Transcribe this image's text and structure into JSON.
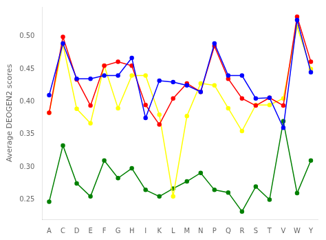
{
  "chart_data": {
    "type": "line",
    "ylabel": "Average DEOGEN2 scores",
    "categories": [
      "A",
      "C",
      "D",
      "E",
      "F",
      "G",
      "H",
      "I",
      "K",
      "L",
      "M",
      "N",
      "P",
      "Q",
      "R",
      "S",
      "T",
      "V",
      "W",
      "Y"
    ],
    "series": [
      {
        "color": "blue",
        "values": [
          0.41,
          0.489,
          0.435,
          0.435,
          0.44,
          0.44,
          0.467,
          0.375,
          0.432,
          0.43,
          0.425,
          0.415,
          0.489,
          0.44,
          0.44,
          0.405,
          0.406,
          0.36,
          0.525,
          0.445
        ]
      },
      {
        "color": "red",
        "values": [
          0.383,
          0.499,
          0.434,
          0.394,
          0.455,
          0.461,
          0.455,
          0.395,
          0.365,
          0.405,
          0.428,
          0.415,
          0.485,
          0.435,
          0.405,
          0.394,
          0.406,
          0.394,
          0.53,
          0.461
        ]
      },
      {
        "color": "yellow",
        "values": [
          0.383,
          0.488,
          0.389,
          0.367,
          0.455,
          0.39,
          0.44,
          0.44,
          0.38,
          0.255,
          0.378,
          0.428,
          0.425,
          0.39,
          0.355,
          0.395,
          0.395,
          0.405,
          0.515,
          0.45
        ]
      },
      {
        "color": "green",
        "values": [
          0.247,
          0.333,
          0.275,
          0.255,
          0.31,
          0.283,
          0.298,
          0.265,
          0.255,
          0.267,
          0.278,
          0.291,
          0.265,
          0.261,
          0.232,
          0.27,
          0.25,
          0.37,
          0.26,
          0.31
        ]
      }
    ],
    "ylim": [
      0.22,
      0.545
    ],
    "yticks": [
      0.25,
      {
        "value": 0.3,
        "label": "0.30"
      },
      0.35,
      {
        "value": 0.4,
        "label": "0.40"
      },
      0.45,
      {
        "value": 0.5,
        "label": "0.50"
      }
    ],
    "marker": "circle",
    "grid": false
  }
}
